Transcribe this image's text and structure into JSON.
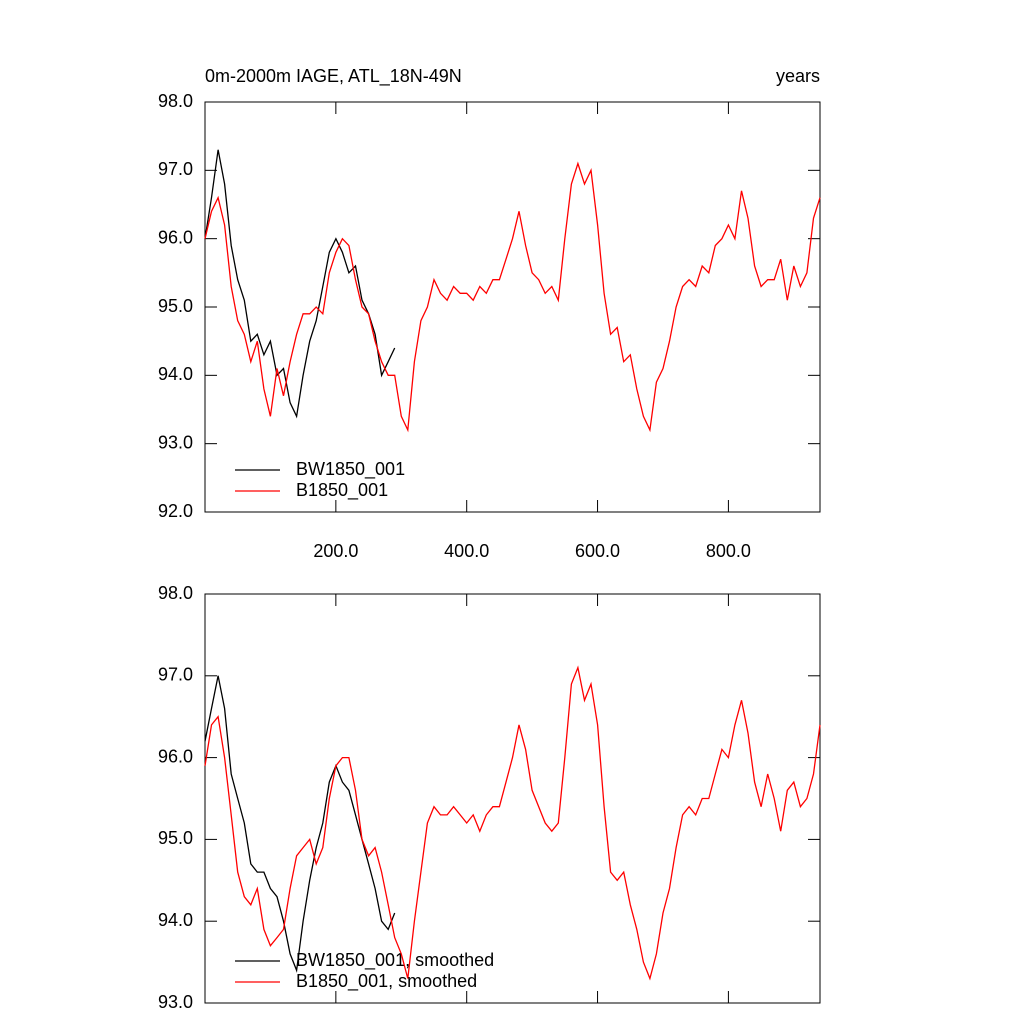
{
  "chart_data": [
    {
      "type": "line",
      "title": "0m-2000m IAGE, ATL_18N-49N",
      "subtitle": "years",
      "x": [
        0,
        10,
        20,
        30,
        40,
        50,
        60,
        70,
        80,
        90,
        100,
        110,
        120,
        130,
        140,
        150,
        160,
        170,
        180,
        190,
        200,
        210,
        220,
        230,
        240,
        250,
        260,
        270,
        280,
        290,
        300,
        310,
        320,
        330,
        340,
        350,
        360,
        370,
        380,
        390,
        400,
        410,
        420,
        430,
        440,
        450,
        460,
        470,
        480,
        490,
        500,
        510,
        520,
        530,
        540,
        550,
        560,
        570,
        580,
        590,
        600,
        610,
        620,
        630,
        640,
        650,
        660,
        670,
        680,
        690,
        700,
        710,
        720,
        730,
        740,
        750,
        760,
        770,
        780,
        790,
        800,
        810,
        820,
        830,
        840,
        850,
        860,
        870,
        880,
        890,
        900,
        910,
        920,
        930,
        940
      ],
      "series": [
        {
          "name": "BW1850_001",
          "color": "#000000",
          "values": [
            96.0,
            96.6,
            97.3,
            96.8,
            95.9,
            95.4,
            95.1,
            94.5,
            94.6,
            94.3,
            94.5,
            94.0,
            94.1,
            93.6,
            93.4,
            94.0,
            94.5,
            94.8,
            95.3,
            95.8,
            96.0,
            95.8,
            95.5,
            95.6,
            95.1,
            94.9,
            94.6,
            94.0,
            94.2,
            94.4,
            null,
            null,
            null,
            null,
            null,
            null,
            null,
            null,
            null,
            null,
            null,
            null,
            null,
            null,
            null,
            null,
            null,
            null,
            null,
            null,
            null,
            null,
            null,
            null,
            null,
            null,
            null,
            null,
            null,
            null,
            null,
            null,
            null,
            null,
            null,
            null,
            null,
            null,
            null,
            null,
            null,
            null,
            null,
            null,
            null,
            null,
            null,
            null,
            null,
            null,
            null,
            null,
            null,
            null,
            null,
            null,
            null,
            null,
            null,
            null,
            null,
            null,
            null,
            null,
            null
          ]
        },
        {
          "name": "B1850_001",
          "color": "#ff0000",
          "values": [
            96.0,
            96.4,
            96.6,
            96.2,
            95.3,
            94.8,
            94.6,
            94.2,
            94.5,
            93.8,
            93.4,
            94.1,
            93.7,
            94.2,
            94.6,
            94.9,
            94.9,
            95.0,
            94.9,
            95.5,
            95.8,
            96.0,
            95.9,
            95.4,
            95.0,
            94.9,
            94.5,
            94.2,
            94.0,
            94.0,
            93.4,
            93.2,
            94.2,
            94.8,
            95.0,
            95.4,
            95.2,
            95.1,
            95.3,
            95.2,
            95.2,
            95.1,
            95.3,
            95.2,
            95.4,
            95.4,
            95.7,
            96.0,
            96.4,
            95.9,
            95.5,
            95.4,
            95.2,
            95.3,
            95.1,
            96.0,
            96.8,
            97.1,
            96.8,
            97.0,
            96.2,
            95.2,
            94.6,
            94.7,
            94.2,
            94.3,
            93.8,
            93.4,
            93.2,
            93.9,
            94.1,
            94.5,
            95.0,
            95.3,
            95.4,
            95.3,
            95.6,
            95.5,
            95.9,
            96.0,
            96.2,
            96.0,
            96.7,
            96.3,
            95.6,
            95.3,
            95.4,
            95.4,
            95.7,
            95.1,
            95.6,
            95.3,
            95.5,
            96.3,
            96.6
          ]
        }
      ],
      "xlim": [
        0,
        940
      ],
      "xticks": [
        {
          "value": 200,
          "label": "200.0"
        },
        {
          "value": 400,
          "label": "400.0"
        },
        {
          "value": 600,
          "label": "600.0"
        },
        {
          "value": 800,
          "label": "800.0"
        }
      ],
      "ylim": [
        92,
        98
      ],
      "yticks": [
        {
          "value": 92,
          "label": "92.0"
        },
        {
          "value": 93,
          "label": "93.0"
        },
        {
          "value": 94,
          "label": "94.0"
        },
        {
          "value": 95,
          "label": "95.0"
        },
        {
          "value": 96,
          "label": "96.0"
        },
        {
          "value": 97,
          "label": "97.0"
        },
        {
          "value": 98,
          "label": "98.0"
        }
      ],
      "legend": "lower left"
    },
    {
      "type": "line",
      "x": [
        0,
        10,
        20,
        30,
        40,
        50,
        60,
        70,
        80,
        90,
        100,
        110,
        120,
        130,
        140,
        150,
        160,
        170,
        180,
        190,
        200,
        210,
        220,
        230,
        240,
        250,
        260,
        270,
        280,
        290,
        300,
        310,
        320,
        330,
        340,
        350,
        360,
        370,
        380,
        390,
        400,
        410,
        420,
        430,
        440,
        450,
        460,
        470,
        480,
        490,
        500,
        510,
        520,
        530,
        540,
        550,
        560,
        570,
        580,
        590,
        600,
        610,
        620,
        630,
        640,
        650,
        660,
        670,
        680,
        690,
        700,
        710,
        720,
        730,
        740,
        750,
        760,
        770,
        780,
        790,
        800,
        810,
        820,
        830,
        840,
        850,
        860,
        870,
        880,
        890,
        900,
        910,
        920,
        930,
        940
      ],
      "series": [
        {
          "name": "BW1850_001, smoothed",
          "color": "#000000",
          "values": [
            96.2,
            96.6,
            97.0,
            96.6,
            95.8,
            95.5,
            95.2,
            94.7,
            94.6,
            94.6,
            94.4,
            94.3,
            94.0,
            93.6,
            93.4,
            94.0,
            94.5,
            94.9,
            95.2,
            95.7,
            95.9,
            95.7,
            95.6,
            95.3,
            95.0,
            94.7,
            94.4,
            94.0,
            93.9,
            94.1,
            null,
            null,
            null,
            null,
            null,
            null,
            null,
            null,
            null,
            null,
            null,
            null,
            null,
            null,
            null,
            null,
            null,
            null,
            null,
            null,
            null,
            null,
            null,
            null,
            null,
            null,
            null,
            null,
            null,
            null,
            null,
            null,
            null,
            null,
            null,
            null,
            null,
            null,
            null,
            null,
            null,
            null,
            null,
            null,
            null,
            null,
            null,
            null,
            null,
            null,
            null,
            null,
            null,
            null,
            null,
            null,
            null,
            null,
            null,
            null,
            null,
            null,
            null,
            null,
            null
          ]
        },
        {
          "name": "B1850_001, smoothed",
          "color": "#ff0000",
          "values": [
            95.9,
            96.4,
            96.5,
            96.0,
            95.3,
            94.6,
            94.3,
            94.2,
            94.4,
            93.9,
            93.7,
            93.8,
            93.9,
            94.4,
            94.8,
            94.9,
            95.0,
            94.7,
            94.9,
            95.5,
            95.9,
            96.0,
            96.0,
            95.6,
            95.0,
            94.8,
            94.9,
            94.6,
            94.2,
            93.8,
            93.6,
            93.3,
            94.0,
            94.6,
            95.2,
            95.4,
            95.3,
            95.3,
            95.4,
            95.3,
            95.2,
            95.3,
            95.1,
            95.3,
            95.4,
            95.4,
            95.7,
            96.0,
            96.4,
            96.1,
            95.6,
            95.4,
            95.2,
            95.1,
            95.2,
            96.0,
            96.9,
            97.1,
            96.7,
            96.9,
            96.4,
            95.4,
            94.6,
            94.5,
            94.6,
            94.2,
            93.9,
            93.5,
            93.3,
            93.6,
            94.1,
            94.4,
            94.9,
            95.3,
            95.4,
            95.3,
            95.5,
            95.5,
            95.8,
            96.1,
            96.0,
            96.4,
            96.7,
            96.3,
            95.7,
            95.4,
            95.8,
            95.5,
            95.1,
            95.6,
            95.7,
            95.4,
            95.5,
            95.8,
            96.4
          ]
        }
      ],
      "xlim": [
        0,
        940
      ],
      "ylim": [
        93,
        98
      ],
      "yticks": [
        {
          "value": 93,
          "label": "93.0"
        },
        {
          "value": 94,
          "label": "94.0"
        },
        {
          "value": 95,
          "label": "95.0"
        },
        {
          "value": 96,
          "label": "96.0"
        },
        {
          "value": 97,
          "label": "97.0"
        },
        {
          "value": 98,
          "label": "98.0"
        }
      ],
      "legend": "lower left"
    }
  ]
}
